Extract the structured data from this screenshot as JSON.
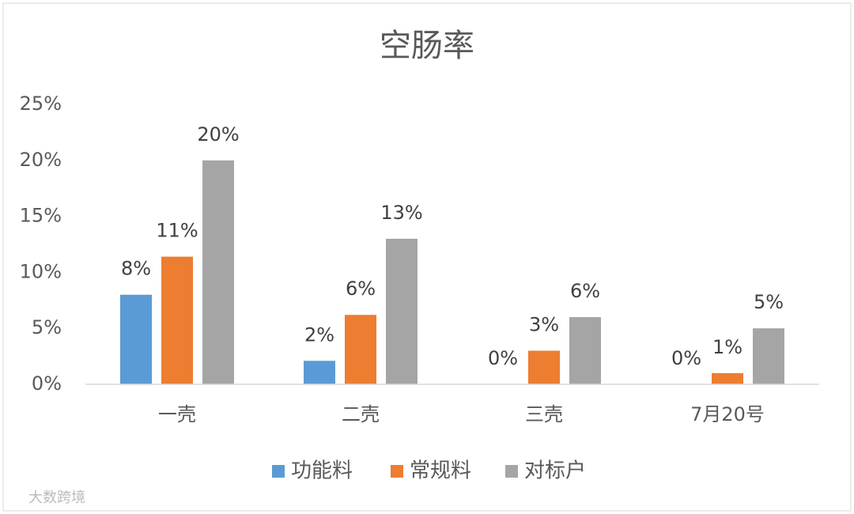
{
  "chart_data": {
    "type": "bar",
    "title": "空肠率",
    "categories": [
      "一壳",
      "二壳",
      "三壳",
      "7月20号"
    ],
    "series": [
      {
        "name": "功能料",
        "color": "#5b9bd5",
        "values": [
          8,
          2.1,
          0,
          0
        ],
        "value_labels": [
          "8%",
          "2%",
          "0%",
          "0%"
        ]
      },
      {
        "name": "常规料",
        "color": "#ed7d31",
        "values": [
          11.4,
          6.2,
          3,
          1
        ],
        "value_labels": [
          "11%",
          "6%",
          "3%",
          "1%"
        ]
      },
      {
        "name": "对标户",
        "color": "#a5a5a5",
        "values": [
          20,
          13,
          6,
          5
        ],
        "value_labels": [
          "20%",
          "13%",
          "6%",
          "5%"
        ]
      }
    ],
    "ylim": [
      0,
      25
    ],
    "yticks": [
      {
        "value": 0,
        "label": "0%"
      },
      {
        "value": 5,
        "label": "5%"
      },
      {
        "value": 10,
        "label": "10%"
      },
      {
        "value": 15,
        "label": "15%"
      },
      {
        "value": 20,
        "label": "20%"
      },
      {
        "value": 25,
        "label": "25%"
      }
    ],
    "grid": false,
    "legend": "bottom",
    "watermark": "大数跨境"
  }
}
